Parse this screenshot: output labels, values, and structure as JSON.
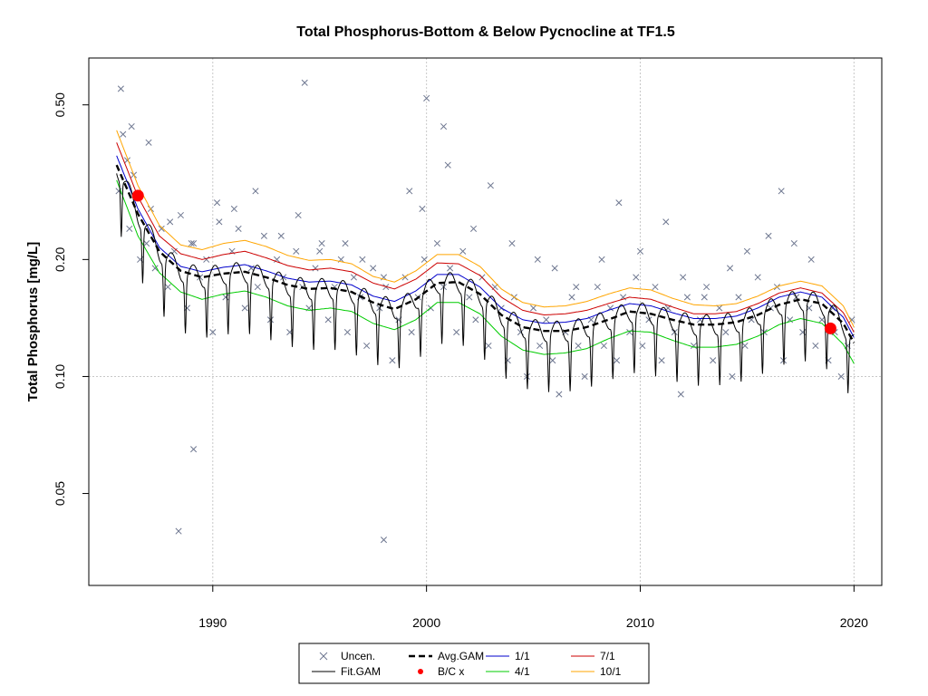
{
  "chart_data": {
    "type": "scatter",
    "title": "Total Phosphorus-Bottom & Below Pycnocline at TF1.5",
    "xlabel": "",
    "ylabel": "Total Phosphorus [mg/L]",
    "y_scale": "log",
    "xlim": [
      1984.2,
      2021.3
    ],
    "ylim": [
      0.029,
      0.66
    ],
    "x_ticks": [
      1990,
      2000,
      2010,
      2020
    ],
    "y_ticks": [
      0.05,
      0.1,
      0.2,
      0.5
    ],
    "y_tick_labels": [
      "0.05",
      "0.10",
      "0.20",
      "0.50"
    ],
    "grid": true,
    "legend_position": "bottom-center",
    "legend": [
      {
        "label": "Uncen.",
        "kind": "x-marker",
        "color": "#6e7790"
      },
      {
        "label": "Fit.GAM",
        "kind": "line",
        "color": "#000000"
      },
      {
        "label": "Avg.GAM",
        "kind": "dashed-line",
        "color": "#000000"
      },
      {
        "label": "B/C x",
        "kind": "dot",
        "color": "#ff0000"
      },
      {
        "label": "1/1",
        "kind": "line",
        "color": "#0000cc"
      },
      {
        "label": "4/1",
        "kind": "line",
        "color": "#00cc00"
      },
      {
        "label": "7/1",
        "kind": "line",
        "color": "#cc0000"
      },
      {
        "label": "10/1",
        "kind": "line",
        "color": "#ffa500"
      }
    ],
    "series": [
      {
        "name": "4/1",
        "color": "#00cc00",
        "x": [
          1985.5,
          1986.5,
          1987.5,
          1988.5,
          1989.5,
          1990.5,
          1991.5,
          1992.5,
          1993.5,
          1994.5,
          1995.5,
          1996.5,
          1997.5,
          1998.5,
          1999.5,
          2000.5,
          2001.5,
          2002.5,
          2003.5,
          2004.5,
          2005.5,
          2006.5,
          2007.5,
          2008.5,
          2009.5,
          2010.5,
          2011.5,
          2012.5,
          2013.5,
          2014.5,
          2015.5,
          2016.5,
          2017.5,
          2018.5,
          2019.5,
          2020.0
        ],
        "y": [
          0.32,
          0.23,
          0.185,
          0.165,
          0.158,
          0.163,
          0.166,
          0.16,
          0.152,
          0.148,
          0.15,
          0.147,
          0.137,
          0.132,
          0.14,
          0.155,
          0.155,
          0.145,
          0.127,
          0.117,
          0.114,
          0.115,
          0.118,
          0.125,
          0.131,
          0.13,
          0.124,
          0.119,
          0.119,
          0.121,
          0.127,
          0.136,
          0.141,
          0.137,
          0.121,
          0.108
        ]
      },
      {
        "name": "1/1",
        "color": "#0000cc",
        "x": [
          1985.5,
          1986.5,
          1987.5,
          1988.5,
          1989.5,
          1990.5,
          1991.5,
          1992.5,
          1993.5,
          1994.5,
          1995.5,
          1996.5,
          1997.5,
          1998.5,
          1999.5,
          2000.5,
          2001.5,
          2002.5,
          2003.5,
          2004.5,
          2005.5,
          2006.5,
          2007.5,
          2008.5,
          2009.5,
          2010.5,
          2011.5,
          2012.5,
          2013.5,
          2014.5,
          2015.5,
          2016.5,
          2017.5,
          2018.5,
          2019.5,
          2020.0
        ],
        "y": [
          0.37,
          0.27,
          0.215,
          0.192,
          0.186,
          0.191,
          0.194,
          0.187,
          0.179,
          0.175,
          0.176,
          0.172,
          0.161,
          0.156,
          0.166,
          0.183,
          0.183,
          0.17,
          0.15,
          0.14,
          0.137,
          0.138,
          0.141,
          0.148,
          0.154,
          0.152,
          0.146,
          0.141,
          0.141,
          0.143,
          0.15,
          0.16,
          0.165,
          0.16,
          0.142,
          0.126
        ]
      },
      {
        "name": "7/1",
        "color": "#cc0000",
        "x": [
          1985.5,
          1986.5,
          1987.5,
          1988.5,
          1989.5,
          1990.5,
          1991.5,
          1992.5,
          1993.5,
          1994.5,
          1995.5,
          1996.5,
          1997.5,
          1998.5,
          1999.5,
          2000.5,
          2001.5,
          2002.5,
          2003.5,
          2004.5,
          2005.5,
          2006.5,
          2007.5,
          2008.5,
          2009.5,
          2010.5,
          2011.5,
          2012.5,
          2013.5,
          2014.5,
          2015.5,
          2016.5,
          2017.5,
          2018.5,
          2019.5,
          2020.0
        ],
        "y": [
          0.4,
          0.29,
          0.23,
          0.207,
          0.2,
          0.206,
          0.21,
          0.202,
          0.193,
          0.188,
          0.19,
          0.186,
          0.174,
          0.168,
          0.178,
          0.196,
          0.195,
          0.182,
          0.16,
          0.148,
          0.144,
          0.145,
          0.148,
          0.154,
          0.16,
          0.158,
          0.151,
          0.145,
          0.145,
          0.147,
          0.154,
          0.164,
          0.169,
          0.164,
          0.146,
          0.13
        ]
      },
      {
        "name": "10/1",
        "color": "#ffa500",
        "x": [
          1985.5,
          1986.5,
          1987.5,
          1988.5,
          1989.5,
          1990.5,
          1991.5,
          1992.5,
          1993.5,
          1994.5,
          1995.5,
          1996.5,
          1997.5,
          1998.5,
          1999.5,
          2000.5,
          2001.5,
          2002.5,
          2003.5,
          2004.5,
          2005.5,
          2006.5,
          2007.5,
          2008.5,
          2009.5,
          2010.5,
          2011.5,
          2012.5,
          2013.5,
          2014.5,
          2015.5,
          2016.5,
          2017.5,
          2018.5,
          2019.5,
          2020.0
        ],
        "y": [
          0.43,
          0.31,
          0.245,
          0.218,
          0.212,
          0.22,
          0.224,
          0.216,
          0.205,
          0.199,
          0.2,
          0.195,
          0.181,
          0.175,
          0.187,
          0.206,
          0.206,
          0.192,
          0.168,
          0.155,
          0.151,
          0.152,
          0.156,
          0.163,
          0.169,
          0.167,
          0.159,
          0.153,
          0.152,
          0.154,
          0.161,
          0.171,
          0.176,
          0.171,
          0.152,
          0.134
        ]
      },
      {
        "name": "Avg.GAM",
        "color": "#000000",
        "dashed": true,
        "x": [
          1985.5,
          1986.5,
          1987.5,
          1988.5,
          1989.5,
          1990.5,
          1991.5,
          1992.5,
          1993.5,
          1994.5,
          1995.5,
          1996.5,
          1997.5,
          1998.5,
          1999.5,
          2000.5,
          2001.5,
          2002.5,
          2003.5,
          2004.5,
          2005.5,
          2006.5,
          2007.5,
          2008.5,
          2009.5,
          2010.5,
          2011.5,
          2012.5,
          2013.5,
          2014.5,
          2015.5,
          2016.5,
          2017.5,
          2018.5,
          2019.5,
          2020.0
        ],
        "y": [
          0.35,
          0.262,
          0.21,
          0.187,
          0.18,
          0.184,
          0.186,
          0.18,
          0.172,
          0.168,
          0.169,
          0.165,
          0.155,
          0.149,
          0.158,
          0.174,
          0.175,
          0.163,
          0.144,
          0.134,
          0.131,
          0.131,
          0.134,
          0.14,
          0.147,
          0.145,
          0.14,
          0.136,
          0.136,
          0.138,
          0.144,
          0.153,
          0.158,
          0.154,
          0.137,
          0.122
        ]
      },
      {
        "name": "Fit.GAM",
        "color": "#000000",
        "seasonal": true,
        "x": [
          1985.5,
          1986.5,
          1987.5,
          1988.5,
          1989.5,
          1990.5,
          1991.5,
          1992.5,
          1993.5,
          1994.5,
          1995.5,
          1996.5,
          1997.5,
          1998.5,
          1999.5,
          2000.5,
          2001.5,
          2002.5,
          2003.5,
          2004.5,
          2005.5,
          2006.5,
          2007.5,
          2008.5,
          2009.5,
          2010.5,
          2011.5,
          2012.5,
          2013.5,
          2014.5,
          2015.5,
          2016.5,
          2017.5,
          2018.5,
          2019.5,
          2020.0
        ],
        "y": [
          0.35,
          0.262,
          0.21,
          0.187,
          0.18,
          0.184,
          0.186,
          0.18,
          0.172,
          0.168,
          0.169,
          0.165,
          0.155,
          0.149,
          0.158,
          0.174,
          0.175,
          0.163,
          0.144,
          0.134,
          0.131,
          0.131,
          0.134,
          0.14,
          0.147,
          0.145,
          0.14,
          0.136,
          0.136,
          0.138,
          0.144,
          0.153,
          0.158,
          0.154,
          0.137,
          0.122
        ]
      }
    ],
    "bc_points": [
      {
        "x": 1986.5,
        "y": 0.292
      },
      {
        "x": 2018.9,
        "y": 0.133
      }
    ],
    "observations": {
      "name": "Uncen.",
      "color": "#6e7790",
      "x": [
        1985.6,
        1985.8,
        1986.0,
        1986.1,
        1986.3,
        1986.6,
        1986.9,
        1987.1,
        1987.3,
        1987.6,
        1987.9,
        1988.2,
        1988.5,
        1988.8,
        1989.1,
        1989.4,
        1989.7,
        1990.0,
        1990.3,
        1990.6,
        1990.9,
        1991.2,
        1991.5,
        1991.8,
        1992.1,
        1992.4,
        1992.7,
        1993.0,
        1993.3,
        1993.6,
        1993.9,
        1994.2,
        1994.5,
        1994.8,
        1995.1,
        1995.4,
        1995.7,
        1996.0,
        1996.3,
        1996.6,
        1996.9,
        1997.2,
        1997.5,
        1997.8,
        1998.1,
        1998.4,
        1998.7,
        1999.0,
        1999.3,
        1999.6,
        1999.9,
        2000.2,
        2000.5,
        2000.8,
        2001.1,
        2001.4,
        2001.7,
        2002.0,
        2002.3,
        2002.6,
        2002.9,
        2003.2,
        2003.5,
        2003.8,
        2004.1,
        2004.4,
        2004.7,
        2005.0,
        2005.3,
        2005.6,
        2005.9,
        2006.2,
        2006.5,
        2006.8,
        2007.1,
        2007.4,
        2007.7,
        2008.0,
        2008.3,
        2008.6,
        2008.9,
        2009.2,
        2009.5,
        2009.8,
        2010.1,
        2010.4,
        2010.7,
        2011.0,
        2011.3,
        2011.6,
        2011.9,
        2012.2,
        2012.5,
        2012.8,
        2013.1,
        2013.4,
        2013.7,
        2014.0,
        2014.3,
        2014.6,
        2014.9,
        2015.2,
        2015.5,
        2015.8,
        2016.1,
        2016.4,
        2016.7,
        2017.0,
        2017.3,
        2017.6,
        2017.9,
        2018.2,
        2018.5,
        2018.8,
        2019.1,
        2019.4,
        2019.7,
        2019.9,
        1986.2,
        1987.0,
        1988.0,
        1989.0,
        1990.2,
        1991.0,
        1992.0,
        1993.2,
        1994.0,
        1995.0,
        1996.2,
        1997.0,
        1998.0,
        1999.2,
        2000.0,
        2001.0,
        2002.2,
        2003.0,
        2004.0,
        2005.2,
        2006.0,
        2007.0,
        2008.2,
        2009.0,
        2010.0,
        2011.2,
        2012.0,
        2013.0,
        2014.2,
        2015.0,
        2016.0,
        2017.2,
        2018.0,
        2019.0,
        1985.7,
        1988.4,
        1989.1,
        1994.3,
        1998.0,
        1999.8,
        2000.8,
        2016.6
      ],
      "y": [
        0.3,
        0.42,
        0.36,
        0.24,
        0.33,
        0.2,
        0.22,
        0.27,
        0.19,
        0.24,
        0.17,
        0.21,
        0.26,
        0.15,
        0.22,
        0.18,
        0.2,
        0.13,
        0.25,
        0.16,
        0.21,
        0.24,
        0.15,
        0.19,
        0.17,
        0.23,
        0.14,
        0.2,
        0.18,
        0.13,
        0.21,
        0.17,
        0.15,
        0.19,
        0.22,
        0.14,
        0.17,
        0.2,
        0.13,
        0.18,
        0.16,
        0.12,
        0.19,
        0.15,
        0.17,
        0.11,
        0.14,
        0.18,
        0.13,
        0.16,
        0.2,
        0.15,
        0.22,
        0.17,
        0.19,
        0.13,
        0.21,
        0.16,
        0.14,
        0.18,
        0.12,
        0.17,
        0.15,
        0.11,
        0.16,
        0.13,
        0.1,
        0.15,
        0.12,
        0.14,
        0.11,
        0.09,
        0.13,
        0.16,
        0.12,
        0.1,
        0.14,
        0.17,
        0.12,
        0.15,
        0.11,
        0.16,
        0.13,
        0.18,
        0.12,
        0.14,
        0.17,
        0.11,
        0.15,
        0.13,
        0.09,
        0.16,
        0.12,
        0.14,
        0.17,
        0.11,
        0.15,
        0.13,
        0.1,
        0.16,
        0.12,
        0.14,
        0.18,
        0.13,
        0.15,
        0.17,
        0.11,
        0.14,
        0.16,
        0.13,
        0.15,
        0.12,
        0.14,
        0.11,
        0.13,
        0.1,
        0.12,
        0.14,
        0.44,
        0.4,
        0.25,
        0.22,
        0.28,
        0.27,
        0.3,
        0.23,
        0.26,
        0.21,
        0.22,
        0.2,
        0.18,
        0.3,
        0.52,
        0.35,
        0.24,
        0.31,
        0.22,
        0.2,
        0.19,
        0.17,
        0.2,
        0.28,
        0.21,
        0.25,
        0.18,
        0.16,
        0.19,
        0.21,
        0.23,
        0.22,
        0.2,
        0.15,
        0.55,
        0.04,
        0.065,
        0.57,
        0.038,
        0.27,
        0.44,
        0.3
      ]
    }
  }
}
